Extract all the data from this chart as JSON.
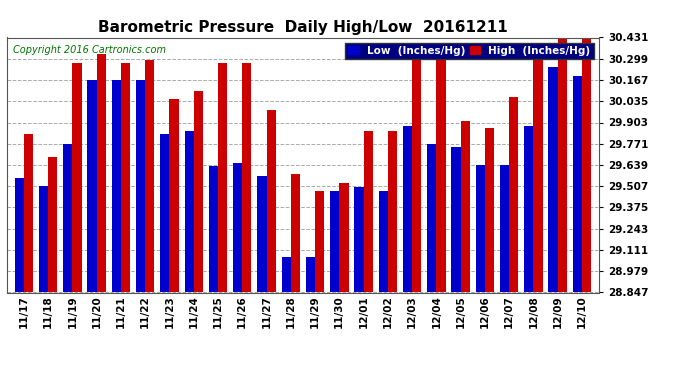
{
  "title": "Barometric Pressure  Daily High/Low  20161211",
  "copyright": "Copyright 2016 Cartronics.com",
  "legend_low": "Low  (Inches/Hg)",
  "legend_high": "High  (Inches/Hg)",
  "categories": [
    "11/17",
    "11/18",
    "11/19",
    "11/20",
    "11/21",
    "11/22",
    "11/23",
    "11/24",
    "11/25",
    "11/26",
    "11/27",
    "11/28",
    "11/29",
    "11/30",
    "12/01",
    "12/02",
    "12/03",
    "12/04",
    "12/05",
    "12/06",
    "12/07",
    "12/08",
    "12/09",
    "12/10"
  ],
  "low_values": [
    29.56,
    29.51,
    29.77,
    30.17,
    30.17,
    30.17,
    29.83,
    29.85,
    29.63,
    29.65,
    29.57,
    29.07,
    29.07,
    29.48,
    29.5,
    29.48,
    29.88,
    29.77,
    29.75,
    29.64,
    29.64,
    29.88,
    30.25,
    30.19
  ],
  "high_values": [
    29.83,
    29.69,
    30.27,
    30.33,
    30.27,
    30.29,
    30.05,
    30.1,
    30.27,
    30.27,
    29.98,
    29.58,
    29.48,
    29.53,
    29.85,
    29.85,
    30.31,
    30.31,
    29.91,
    29.87,
    30.06,
    30.33,
    30.43,
    30.43
  ],
  "ymin": 28.847,
  "ymax": 30.431,
  "yticks": [
    28.847,
    28.979,
    29.111,
    29.243,
    29.375,
    29.507,
    29.639,
    29.771,
    29.903,
    30.035,
    30.167,
    30.299,
    30.431
  ],
  "low_color": "#0000cc",
  "high_color": "#cc0000",
  "bg_color": "#ffffff",
  "plot_bg_color": "#ffffff",
  "grid_color": "#aaaaaa",
  "title_fontsize": 11,
  "tick_fontsize": 7.5,
  "copyright_fontsize": 7,
  "legend_fontsize": 7.5
}
